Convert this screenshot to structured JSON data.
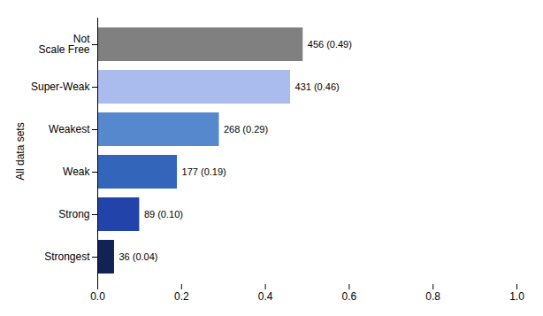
{
  "chart_data": {
    "type": "bar",
    "orientation": "horizontal",
    "categories": [
      "Not\nScale Free",
      "Super-Weak",
      "Weakest",
      "Weak",
      "Strong",
      "Strongest"
    ],
    "values": [
      0.49,
      0.46,
      0.29,
      0.19,
      0.1,
      0.04
    ],
    "value_labels": [
      "456 (0.49)",
      "431 (0.46)",
      "268 (0.29)",
      "177 (0.19)",
      "89 (0.10)",
      "36 (0.04)"
    ],
    "colors": [
      "#808080",
      "#aabbee",
      "#5588cc",
      "#3366bb",
      "#2244aa",
      "#112255"
    ],
    "data_labels": true,
    "ylabel": "All data sets",
    "xlim": [
      0,
      1.0
    ],
    "xticks": [
      {
        "value": 0,
        "label": "0.0"
      },
      0.2,
      0.4,
      0.6,
      0.8,
      {
        "value": 1,
        "label": "1.0"
      }
    ],
    "grid": false
  }
}
